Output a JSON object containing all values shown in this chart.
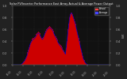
{
  "title": "Solar PV/Inverter Performance East Array Actual & Average Power Output",
  "bg_color": "#222222",
  "plot_bg_color": "#111111",
  "grid_color": "#444444",
  "bar_color": "#cc0000",
  "avg_line_color": "#0000cc",
  "legend_actual_color": "#ff4444",
  "legend_avg_color": "#4444ff",
  "ylabel_right": "kW",
  "ylim": [
    0,
    1.0
  ],
  "num_bars": 144,
  "bar_heights": [
    0.0,
    0.0,
    0.0,
    0.0,
    0.0,
    0.0,
    0.0,
    0.0,
    0.0,
    0.0,
    0.0,
    0.0,
    0.01,
    0.02,
    0.03,
    0.04,
    0.05,
    0.07,
    0.09,
    0.12,
    0.15,
    0.18,
    0.22,
    0.26,
    0.3,
    0.34,
    0.38,
    0.4,
    0.42,
    0.44,
    0.45,
    0.46,
    0.47,
    0.48,
    0.5,
    0.52,
    0.54,
    0.55,
    0.56,
    0.55,
    0.53,
    0.5,
    0.48,
    0.46,
    0.45,
    0.47,
    0.5,
    0.53,
    0.56,
    0.58,
    0.6,
    0.62,
    0.63,
    0.64,
    0.65,
    0.65,
    0.64,
    0.63,
    0.62,
    0.6,
    0.58,
    0.55,
    0.52,
    0.5,
    0.48,
    0.45,
    0.43,
    0.4,
    0.38,
    0.36,
    0.35,
    0.33,
    0.32,
    0.3,
    0.28,
    0.26,
    0.24,
    0.22,
    0.2,
    0.3,
    0.4,
    0.5,
    0.6,
    0.7,
    0.8,
    0.85,
    0.88,
    0.9,
    0.88,
    0.85,
    0.82,
    0.78,
    0.74,
    0.7,
    0.65,
    0.6,
    0.55,
    0.5,
    0.45,
    0.4,
    0.35,
    0.3,
    0.25,
    0.2,
    0.15,
    0.1,
    0.08,
    0.06,
    0.04,
    0.03,
    0.02,
    0.01,
    0.0,
    0.0,
    0.0,
    0.0,
    0.0,
    0.0,
    0.0,
    0.0,
    0.0,
    0.0,
    0.0,
    0.0,
    0.0,
    0.0,
    0.0,
    0.0,
    0.0,
    0.0,
    0.0,
    0.0,
    0.0,
    0.0,
    0.0,
    0.0,
    0.0,
    0.0,
    0.0,
    0.0,
    0.0,
    0.0,
    0.0,
    0.0
  ],
  "avg_heights": [
    0.0,
    0.0,
    0.0,
    0.0,
    0.0,
    0.0,
    0.0,
    0.0,
    0.0,
    0.0,
    0.0,
    0.0,
    0.01,
    0.015,
    0.025,
    0.035,
    0.045,
    0.06,
    0.08,
    0.1,
    0.13,
    0.16,
    0.2,
    0.24,
    0.28,
    0.32,
    0.36,
    0.38,
    0.4,
    0.42,
    0.43,
    0.44,
    0.45,
    0.46,
    0.48,
    0.5,
    0.52,
    0.53,
    0.54,
    0.53,
    0.51,
    0.48,
    0.46,
    0.44,
    0.43,
    0.45,
    0.48,
    0.51,
    0.54,
    0.56,
    0.58,
    0.6,
    0.61,
    0.62,
    0.63,
    0.63,
    0.62,
    0.61,
    0.6,
    0.58,
    0.56,
    0.53,
    0.5,
    0.48,
    0.46,
    0.43,
    0.41,
    0.38,
    0.36,
    0.34,
    0.33,
    0.31,
    0.3,
    0.28,
    0.26,
    0.24,
    0.22,
    0.2,
    0.18,
    0.28,
    0.38,
    0.48,
    0.58,
    0.68,
    0.78,
    0.83,
    0.86,
    0.88,
    0.86,
    0.83,
    0.8,
    0.76,
    0.72,
    0.68,
    0.63,
    0.58,
    0.53,
    0.48,
    0.43,
    0.38,
    0.33,
    0.28,
    0.23,
    0.18,
    0.13,
    0.09,
    0.07,
    0.05,
    0.03,
    0.02,
    0.01,
    0.005,
    0.0,
    0.0,
    0.0,
    0.0,
    0.0,
    0.0,
    0.0,
    0.0,
    0.0,
    0.0,
    0.0,
    0.0,
    0.0,
    0.0,
    0.0,
    0.0,
    0.0,
    0.0,
    0.0,
    0.0,
    0.0,
    0.0,
    0.0,
    0.0,
    0.0,
    0.0,
    0.0,
    0.0,
    0.0,
    0.0,
    0.0,
    0.0
  ]
}
